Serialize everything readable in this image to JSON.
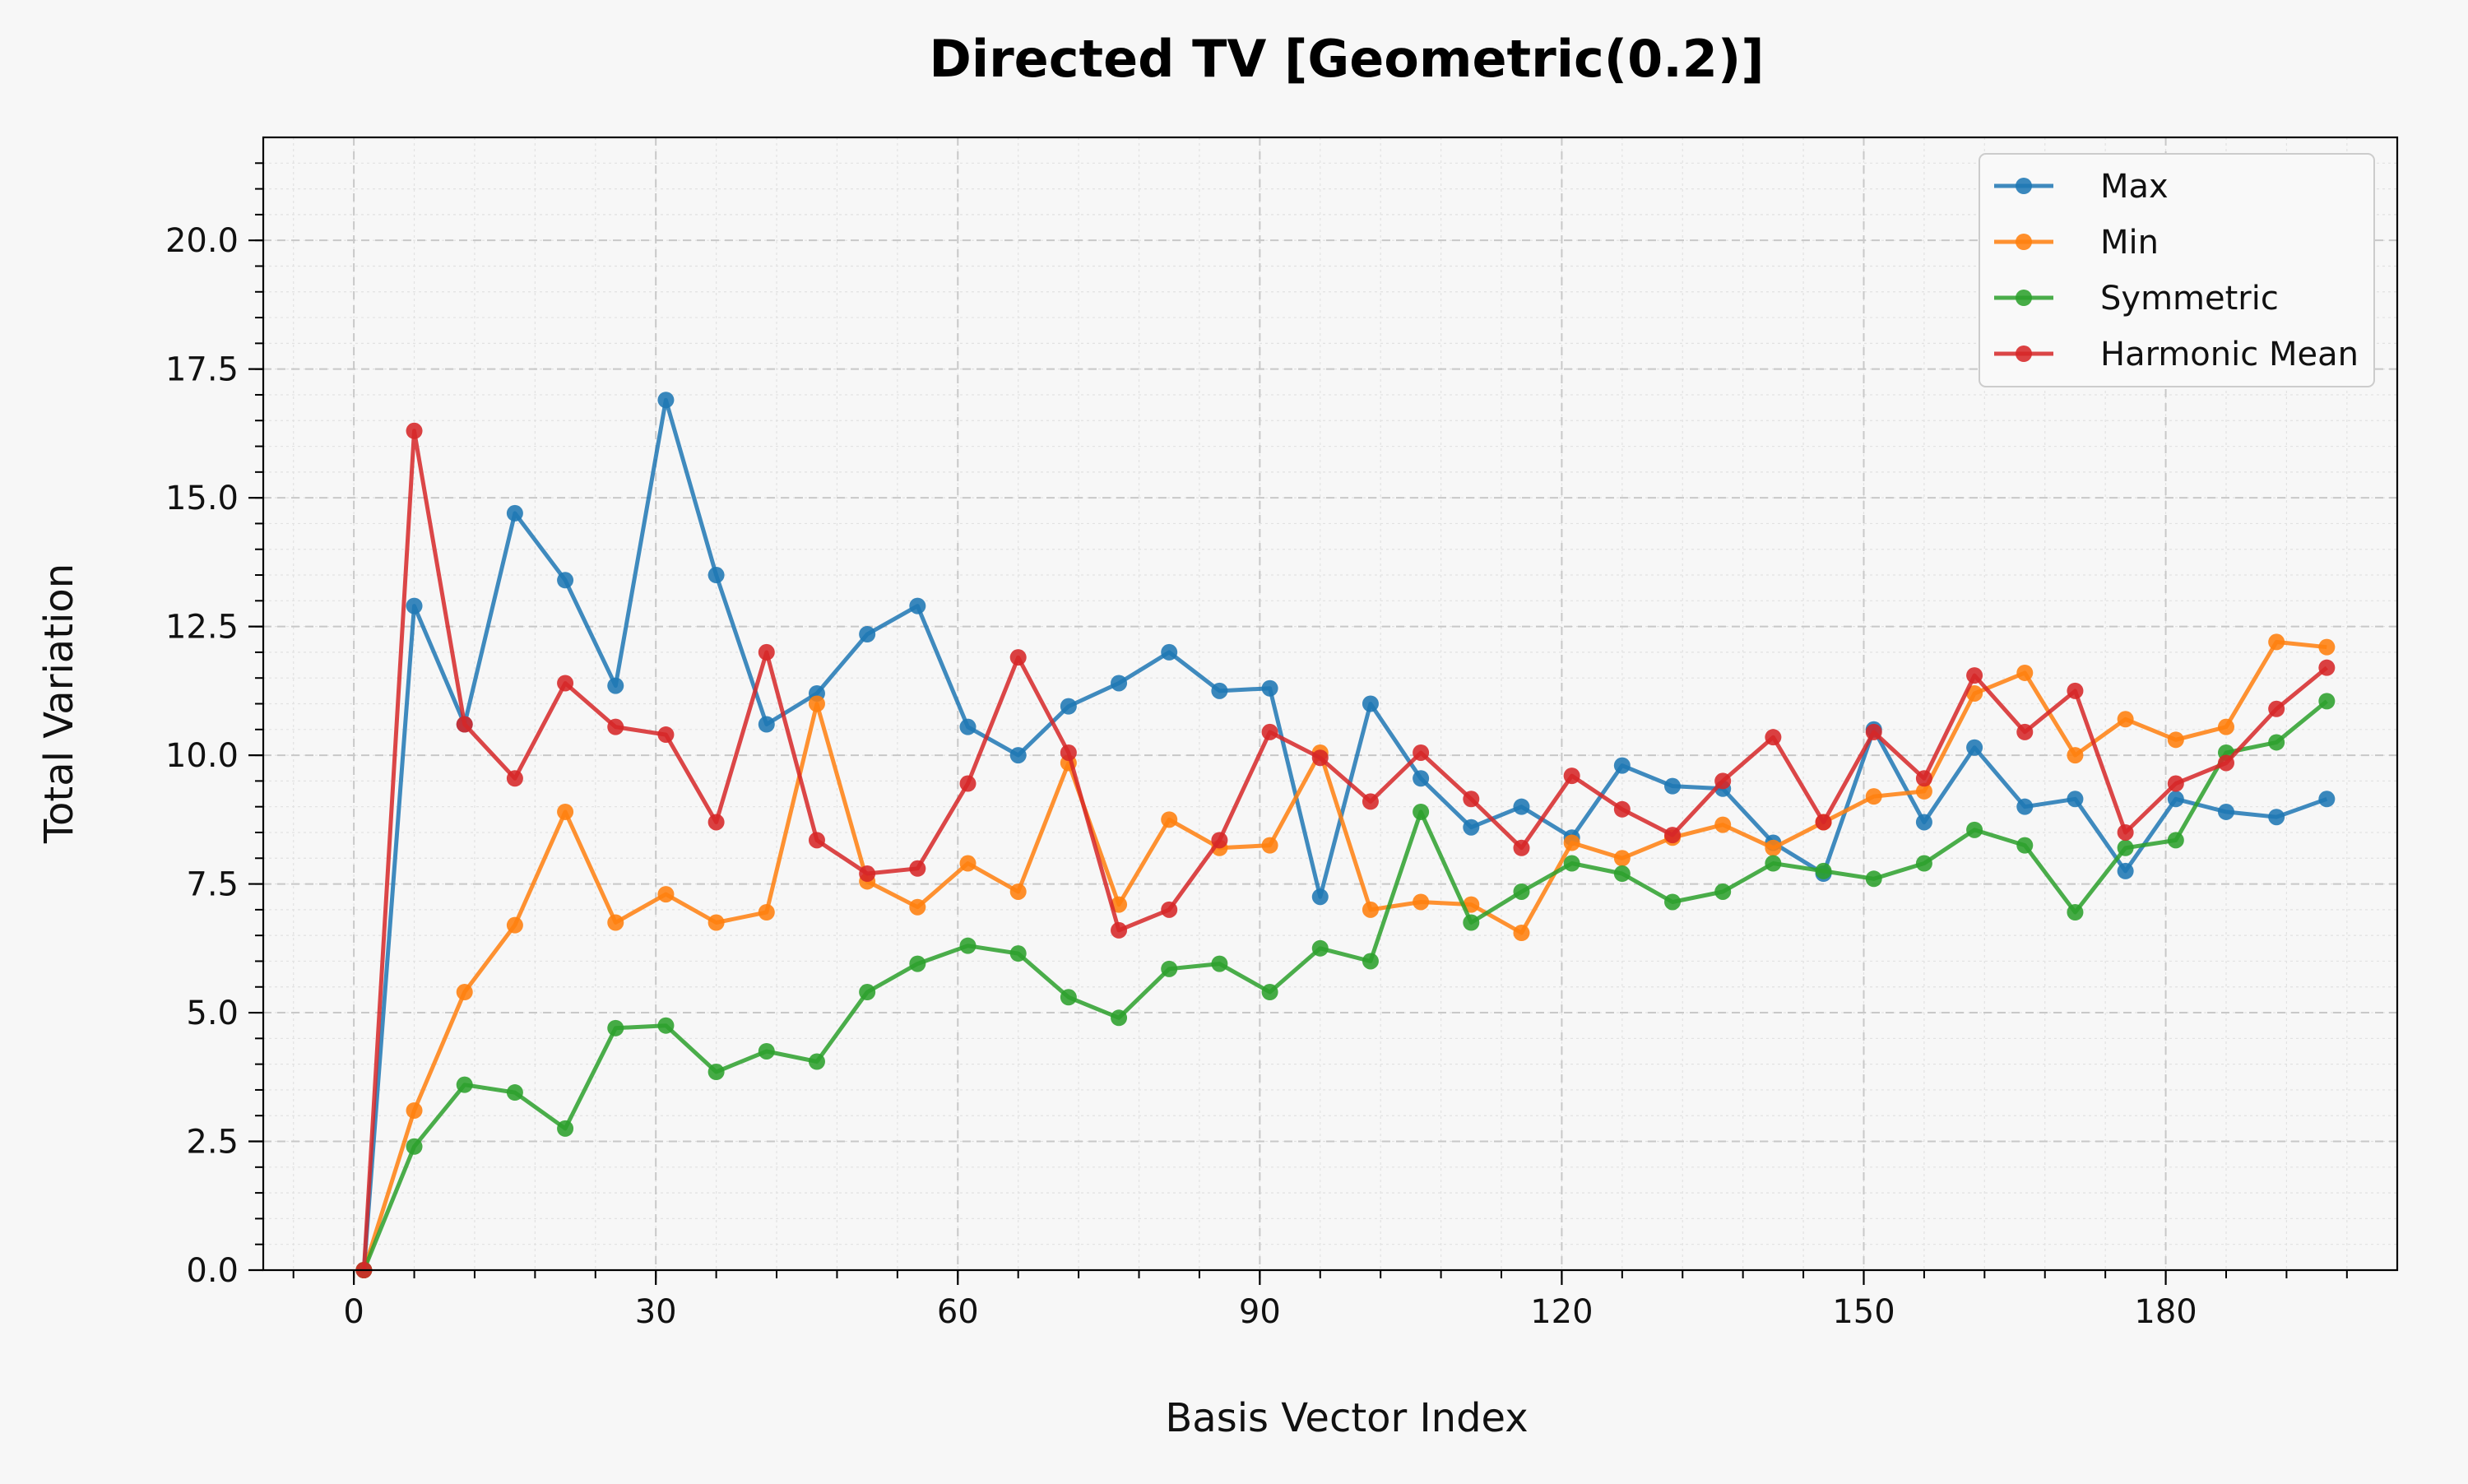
{
  "chart_data": {
    "type": "line",
    "title": "Directed TV [Geometric(0.2)]",
    "xlabel": "Basis Vector Index",
    "ylabel": "Total Variation",
    "xlim": [
      -9,
      203
    ],
    "ylim": [
      0,
      22
    ],
    "xticks": [
      0,
      30,
      60,
      90,
      120,
      150,
      180
    ],
    "xtick_labels": [
      "0",
      "30",
      "60",
      "90",
      "120",
      "150",
      "180"
    ],
    "yticks": [
      0,
      2.5,
      5,
      7.5,
      10,
      12.5,
      15,
      17.5,
      20
    ],
    "ytick_labels": [
      "0.0",
      "2.5",
      "5.0",
      "7.5",
      "10.0",
      "12.5",
      "15.0",
      "17.5",
      "20.0"
    ],
    "grid": true,
    "legend_position": "top-right",
    "x": [
      1,
      6,
      11,
      16,
      21,
      26,
      31,
      36,
      41,
      46,
      51,
      56,
      61,
      66,
      71,
      76,
      81,
      86,
      91,
      96,
      101,
      106,
      111,
      116,
      121,
      126,
      131,
      136,
      141,
      146,
      151,
      156,
      161,
      166,
      171,
      176,
      181,
      186,
      191,
      196
    ],
    "series": [
      {
        "name": "Max",
        "color": "#1f77b4",
        "values": [
          0.0,
          12.9,
          10.6,
          14.7,
          13.4,
          11.35,
          16.9,
          13.5,
          10.6,
          11.2,
          12.35,
          12.9,
          10.55,
          10.0,
          10.95,
          11.4,
          12.0,
          11.25,
          11.3,
          7.25,
          11.0,
          9.55,
          8.6,
          9.0,
          8.4,
          9.8,
          9.4,
          9.35,
          8.3,
          7.7,
          10.5,
          8.7,
          10.15,
          9.0,
          9.15,
          7.75,
          9.15,
          8.9,
          8.8,
          9.15
        ]
      },
      {
        "name": "Min",
        "color": "#ff7f0e",
        "values": [
          0.0,
          3.1,
          5.4,
          6.7,
          8.9,
          6.75,
          7.3,
          6.75,
          6.95,
          11.0,
          7.55,
          7.05,
          7.9,
          7.35,
          9.85,
          7.1,
          8.75,
          8.2,
          8.25,
          10.05,
          7.0,
          7.15,
          7.1,
          6.55,
          8.3,
          8.0,
          8.4,
          8.65,
          8.2,
          8.7,
          9.2,
          9.3,
          11.2,
          11.6,
          10.0,
          10.7,
          10.3,
          10.55,
          12.2,
          12.1
        ]
      },
      {
        "name": "Symmetric",
        "color": "#2ca02c",
        "values": [
          0.0,
          2.4,
          3.6,
          3.45,
          2.75,
          4.7,
          4.75,
          3.85,
          4.25,
          4.05,
          5.4,
          5.95,
          6.3,
          6.15,
          5.3,
          4.9,
          5.85,
          5.95,
          5.4,
          6.25,
          6.0,
          8.9,
          6.75,
          7.35,
          7.9,
          7.7,
          7.15,
          7.35,
          7.9,
          7.75,
          7.6,
          7.9,
          8.55,
          8.25,
          6.95,
          8.2,
          8.35,
          10.05,
          10.25,
          11.05
        ]
      },
      {
        "name": "Harmonic Mean",
        "color": "#d62728",
        "values": [
          0.0,
          16.3,
          10.6,
          9.55,
          11.4,
          10.55,
          10.4,
          8.7,
          12.0,
          8.35,
          7.7,
          7.8,
          9.45,
          11.9,
          10.05,
          6.6,
          7.0,
          8.35,
          10.45,
          9.95,
          9.1,
          10.05,
          9.15,
          8.2,
          9.6,
          8.95,
          8.45,
          9.5,
          10.35,
          8.7,
          10.45,
          9.55,
          11.55,
          10.45,
          11.25,
          8.5,
          9.45,
          9.85,
          10.9,
          11.7
        ]
      }
    ]
  }
}
